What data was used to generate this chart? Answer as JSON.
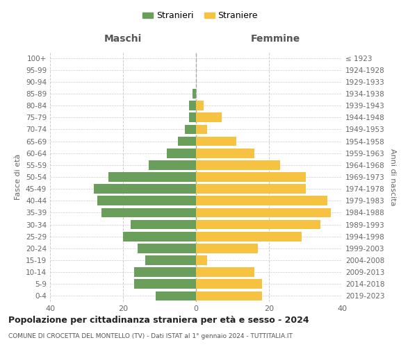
{
  "age_groups": [
    "0-4",
    "5-9",
    "10-14",
    "15-19",
    "20-24",
    "25-29",
    "30-34",
    "35-39",
    "40-44",
    "45-49",
    "50-54",
    "55-59",
    "60-64",
    "65-69",
    "70-74",
    "75-79",
    "80-84",
    "85-89",
    "90-94",
    "95-99",
    "100+"
  ],
  "birth_years": [
    "2019-2023",
    "2014-2018",
    "2009-2013",
    "2004-2008",
    "1999-2003",
    "1994-1998",
    "1989-1993",
    "1984-1988",
    "1979-1983",
    "1974-1978",
    "1969-1973",
    "1964-1968",
    "1959-1963",
    "1954-1958",
    "1949-1953",
    "1944-1948",
    "1939-1943",
    "1934-1938",
    "1929-1933",
    "1924-1928",
    "≤ 1923"
  ],
  "maschi": [
    11,
    17,
    17,
    14,
    16,
    20,
    18,
    26,
    27,
    28,
    24,
    13,
    8,
    5,
    3,
    2,
    2,
    1,
    0,
    0,
    0
  ],
  "femmine": [
    18,
    18,
    16,
    3,
    17,
    29,
    34,
    37,
    36,
    30,
    30,
    23,
    16,
    11,
    3,
    7,
    2,
    0,
    0,
    0,
    0
  ],
  "maschi_color": "#6a9e5b",
  "femmine_color": "#f5c242",
  "background_color": "#ffffff",
  "grid_color": "#cccccc",
  "title": "Popolazione per cittadinanza straniera per età e sesso - 2024",
  "subtitle": "COMUNE DI CROCETTA DEL MONTELLO (TV) - Dati ISTAT al 1° gennaio 2024 - TUTTITALIA.IT",
  "ylabel_left": "Fasce di età",
  "ylabel_right": "Anni di nascita",
  "xlabel_left": "Maschi",
  "xlabel_right": "Femmine",
  "legend_maschi": "Stranieri",
  "legend_femmine": "Straniere",
  "xlim": 40,
  "bar_height": 0.8
}
